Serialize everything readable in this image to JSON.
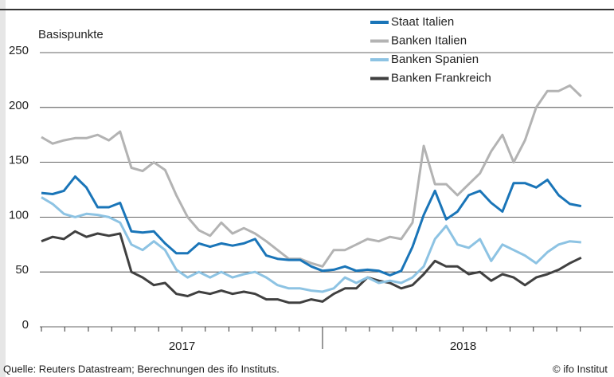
{
  "chart_data": {
    "type": "line",
    "y_label": "Basispunkte",
    "source": "Quelle: Reuters Datastream; Berechnungen des ifo Instituts.",
    "credit": "© ifo Institut",
    "x": [
      2017,
      2017.04,
      2017.08,
      2017.12,
      2017.16,
      2017.2,
      2017.24,
      2017.28,
      2017.32,
      2017.36,
      2017.4,
      2017.44,
      2017.48,
      2017.52,
      2017.56,
      2017.6,
      2017.64,
      2017.68,
      2017.72,
      2017.76,
      2017.8,
      2017.84,
      2017.88,
      2017.92,
      2017.96,
      2018,
      2018.04,
      2018.08,
      2018.12,
      2018.16,
      2018.2,
      2018.24,
      2018.28,
      2018.32,
      2018.36,
      2018.4,
      2018.44,
      2018.48,
      2018.52,
      2018.56,
      2018.6,
      2018.64,
      2018.68,
      2018.72,
      2018.76,
      2018.8,
      2018.84,
      2018.88,
      2018.92
    ],
    "series": [
      {
        "name": "Staat Italien",
        "color": "#1a75b8",
        "values": [
          122,
          121,
          124,
          137,
          127,
          109,
          109,
          113,
          87,
          86,
          87,
          76,
          67,
          67,
          76,
          73,
          76,
          74,
          76,
          80,
          65,
          62,
          61,
          61,
          55,
          51,
          52,
          55,
          51,
          52,
          51,
          47,
          51,
          73,
          102,
          124,
          98,
          105,
          120,
          124,
          113,
          105,
          131,
          131,
          127,
          134,
          120,
          112,
          110
        ]
      },
      {
        "name": "Banken Italien",
        "color": "#b3b3b3",
        "values": [
          173,
          167,
          170,
          172,
          172,
          175,
          170,
          178,
          145,
          142,
          150,
          143,
          120,
          100,
          88,
          83,
          95,
          85,
          90,
          85,
          78,
          70,
          62,
          62,
          58,
          55,
          70,
          70,
          75,
          80,
          78,
          82,
          80,
          95,
          165,
          130,
          130,
          120,
          130,
          140,
          160,
          175,
          150,
          170,
          200,
          215,
          215,
          220,
          210
        ]
      },
      {
        "name": "Banken Spanien",
        "color": "#8dc3e3",
        "values": [
          118,
          112,
          103,
          100,
          103,
          102,
          100,
          95,
          75,
          70,
          78,
          70,
          52,
          45,
          50,
          45,
          50,
          45,
          48,
          50,
          45,
          38,
          35,
          35,
          33,
          32,
          35,
          45,
          40,
          45,
          40,
          42,
          40,
          45,
          55,
          80,
          92,
          75,
          72,
          80,
          60,
          75,
          70,
          65,
          58,
          68,
          75,
          78,
          77
        ]
      },
      {
        "name": "Banken Frankreich",
        "color": "#404040",
        "values": [
          78,
          82,
          80,
          87,
          82,
          85,
          83,
          85,
          50,
          45,
          38,
          40,
          30,
          28,
          32,
          30,
          33,
          30,
          32,
          30,
          25,
          25,
          22,
          22,
          25,
          23,
          30,
          35,
          35,
          45,
          42,
          40,
          35,
          38,
          48,
          60,
          55,
          55,
          48,
          50,
          42,
          48,
          45,
          38,
          45,
          48,
          52,
          58,
          63
        ]
      }
    ],
    "xlim": [
      2017,
      2019
    ],
    "xticks": [
      2017,
      2017.083,
      2017.167,
      2017.25,
      2017.333,
      2017.417,
      2017.5,
      2017.583,
      2017.667,
      2017.75,
      2017.833,
      2017.917,
      2018,
      2018.083,
      2018.167,
      2018.25,
      2018.333,
      2018.417,
      2018.5,
      2018.583,
      2018.667,
      2018.75,
      2018.833,
      2018.917
    ],
    "x_labels": [
      {
        "value": 2017.5,
        "label": "2017"
      },
      {
        "value": 2018.5,
        "label": "2018"
      }
    ],
    "ylim": [
      0,
      250
    ],
    "yticks": [
      0,
      50,
      100,
      150,
      200,
      250
    ],
    "grid": true,
    "legend": "top"
  }
}
